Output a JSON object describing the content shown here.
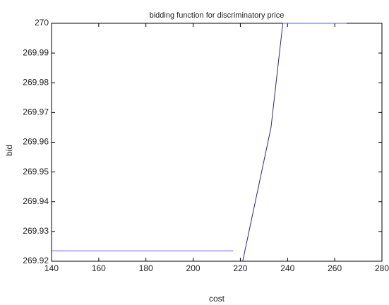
{
  "chart_data": {
    "type": "line",
    "title": "bidding function for  discriminatory price",
    "x_label": "cost",
    "y_label": "bid",
    "xlim": [
      140,
      280
    ],
    "xticks": [
      140,
      160,
      180,
      200,
      220,
      240,
      260,
      280
    ],
    "ylim": [
      269.92,
      270
    ],
    "yticks": [
      269.92,
      269.93,
      269.94,
      269.95,
      269.96,
      269.97,
      269.98,
      269.99,
      270
    ],
    "grid": false,
    "series": [
      {
        "color": "#5a5aff",
        "x": [
          140,
          217
        ],
        "values": [
          269.9235,
          269.9235
        ]
      },
      {
        "color": "#2a2a6a",
        "x": [
          221,
          233,
          238
        ],
        "values": [
          269.92,
          269.965,
          270
        ]
      },
      {
        "color": "#5a5aff",
        "x": [
          238,
          265
        ],
        "values": [
          270,
          270
        ]
      }
    ]
  }
}
